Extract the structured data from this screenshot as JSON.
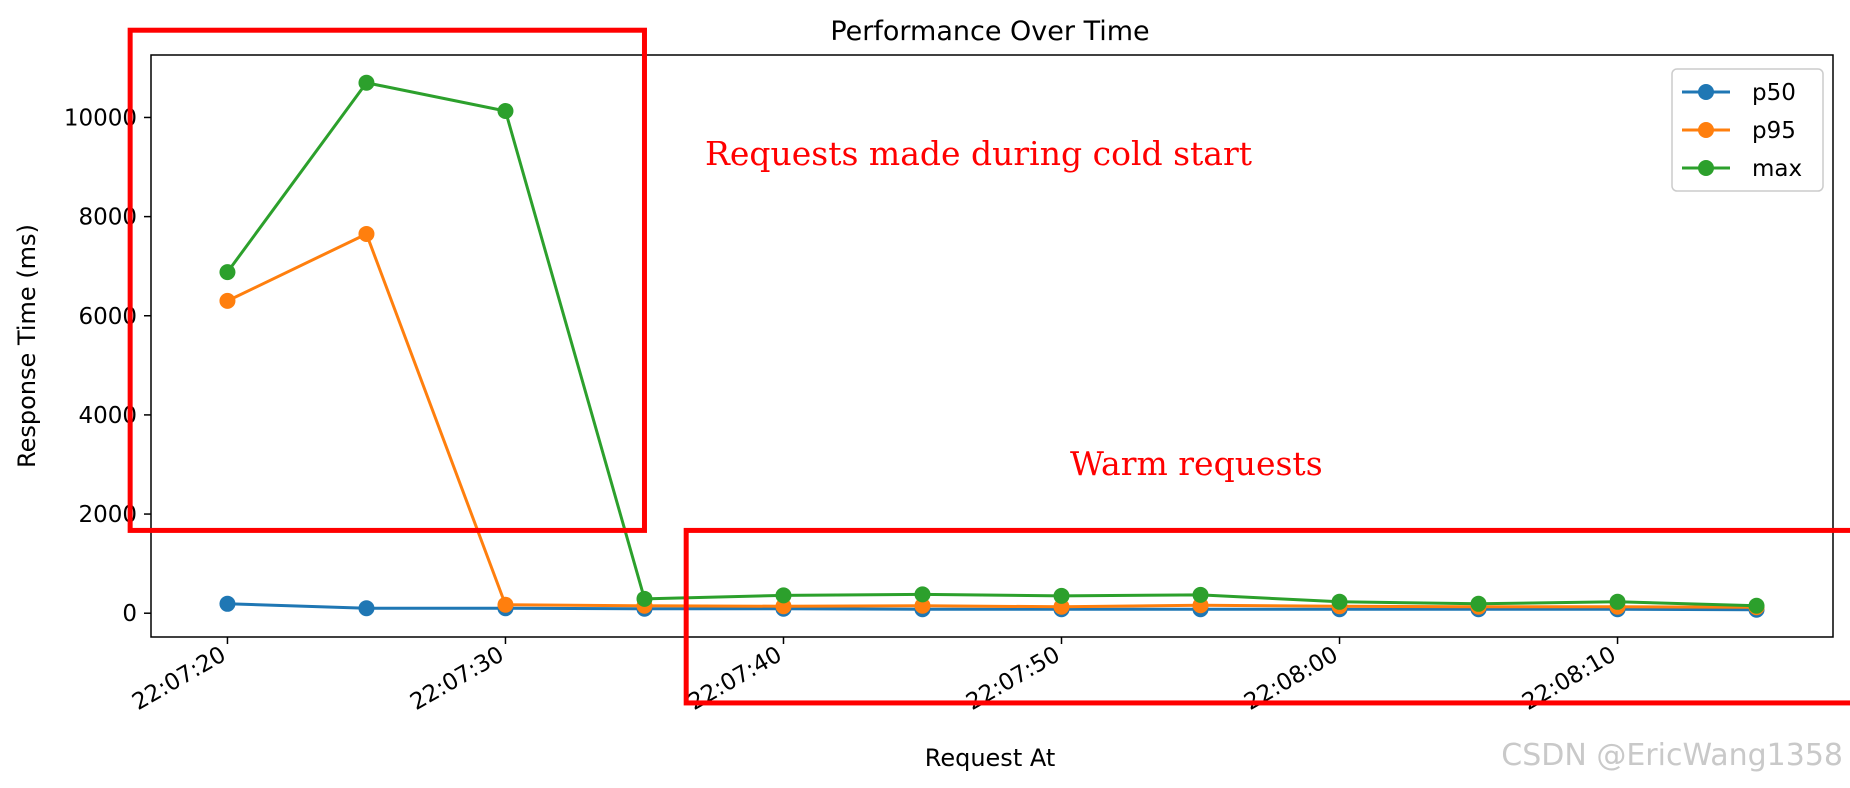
{
  "chart_data": {
    "type": "line",
    "title": "Performance Over Time",
    "xlabel": "Request At",
    "ylabel": "Response Time (ms)",
    "x": [
      "22:07:20",
      "22:07:25",
      "22:07:30",
      "22:07:35",
      "22:07:40",
      "22:07:45",
      "22:07:50",
      "22:07:55",
      "22:08:00",
      "22:08:05",
      "22:08:10",
      "22:08:15"
    ],
    "x_ticks": [
      "22:07:20",
      "22:07:30",
      "22:07:40",
      "22:07:50",
      "22:08:00",
      "22:08:10"
    ],
    "y_ticks": [
      0,
      2000,
      4000,
      6000,
      8000,
      10000
    ],
    "xlim": [
      "22:07:17.25",
      "22:08:17.75"
    ],
    "ylim": [
      -480,
      11260
    ],
    "grid": false,
    "legend_position": "top-right",
    "series": [
      {
        "name": "p50",
        "color": "#1f77b4",
        "values": [
          190,
          100,
          100,
          90,
          90,
          80,
          80,
          80,
          80,
          80,
          80,
          70
        ]
      },
      {
        "name": "p95",
        "color": "#ff7f0e",
        "values": [
          6300,
          7650,
          170,
          150,
          140,
          150,
          130,
          160,
          140,
          130,
          130,
          120
        ]
      },
      {
        "name": "max",
        "color": "#2ca02c",
        "values": [
          6880,
          10700,
          10130,
          290,
          360,
          380,
          350,
          370,
          230,
          190,
          230,
          150
        ]
      }
    ],
    "annotations": [
      {
        "text": "Requests made during cold start",
        "color": "#ff0000",
        "region": {
          "x": [
            "22:07:16.5",
            "22:07:35"
          ],
          "y": [
            1670,
            11760
          ]
        }
      },
      {
        "text": "Warm requests",
        "color": "#ff0000",
        "region": {
          "x": [
            "22:07:36.5",
            "22:08:18.5"
          ],
          "y": [
            -1810,
            1670
          ]
        }
      }
    ]
  },
  "watermark": "CSDN @EricWang1358"
}
